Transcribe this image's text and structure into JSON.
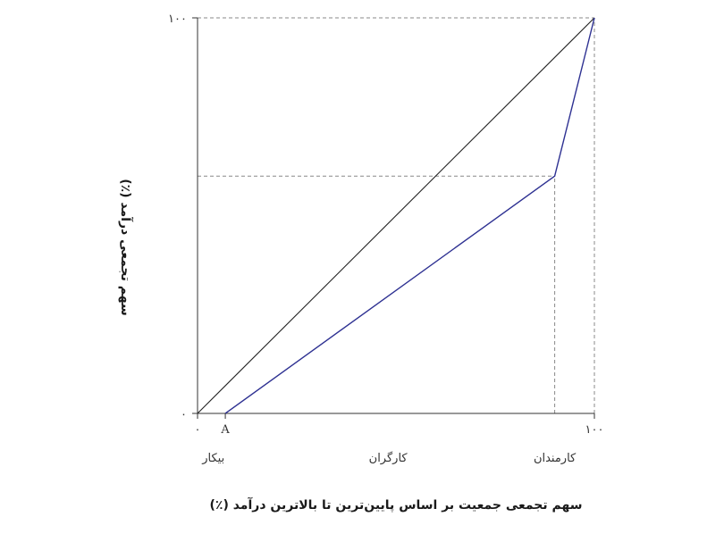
{
  "chart_data": {
    "type": "line",
    "xlabel": "سهم تجمعی جمعیت بر اساس پایین‌ترین تا بالاترین درآمد (٪)",
    "ylabel": "سهم تجمعی درآمد (٪)",
    "xlim": [
      0,
      100
    ],
    "ylim": [
      0,
      100
    ],
    "x_ticks": [
      {
        "value": 0,
        "label": "۰"
      },
      {
        "value": 7,
        "label": "A"
      },
      {
        "value": 100,
        "label": "۱۰۰"
      }
    ],
    "y_ticks": [
      {
        "value": 0,
        "label": "۰"
      },
      {
        "value": 100,
        "label": "۱۰۰"
      }
    ],
    "group_labels": [
      {
        "x": 4,
        "label": "بیکار"
      },
      {
        "x": 48,
        "label": "کارگران"
      },
      {
        "x": 90,
        "label": "کارمندان"
      }
    ],
    "series": [
      {
        "role": "equality-line",
        "color": "#222222",
        "x": [
          0,
          100
        ],
        "y": [
          0,
          100
        ]
      },
      {
        "role": "lorenz-curve",
        "color": "#2e3192",
        "x": [
          7,
          90,
          100
        ],
        "y": [
          0,
          60,
          100
        ]
      }
    ],
    "guides": [
      {
        "type": "horizontal",
        "y": 60,
        "from_x": 0,
        "to_x": 90
      },
      {
        "type": "vertical",
        "x": 90,
        "from_y": 0,
        "to_y": 60
      },
      {
        "type": "horizontal",
        "y": 100,
        "from_x": 0,
        "to_x": 100
      },
      {
        "type": "vertical",
        "x": 100,
        "from_y": 0,
        "to_y": 100
      }
    ],
    "grid": false,
    "legend": "none"
  }
}
